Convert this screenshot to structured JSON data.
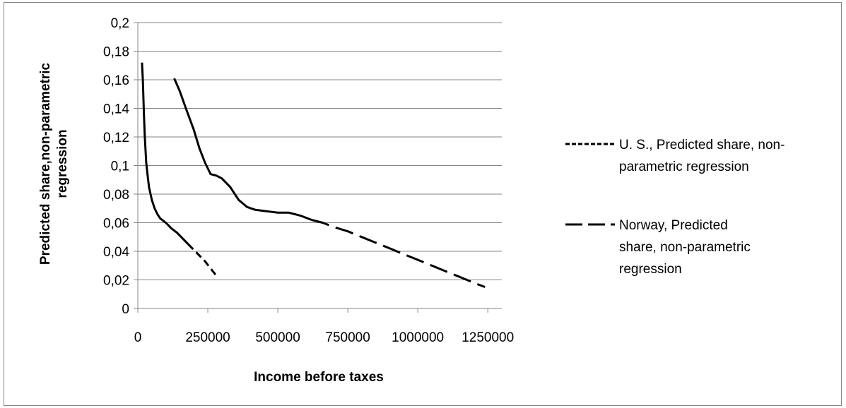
{
  "chart_data": {
    "type": "line",
    "title": "",
    "xlabel": "Income before taxes",
    "ylabel": [
      "Predicted share,non-parametric",
      "regression"
    ],
    "xlim": [
      0,
      1300000
    ],
    "ylim": [
      0,
      0.2
    ],
    "x_ticks": [
      0,
      250000,
      500000,
      750000,
      1000000,
      1250000
    ],
    "x_tick_labels": [
      "0",
      "250000",
      "500000",
      "750000",
      "1000000",
      "1250000"
    ],
    "y_ticks": [
      0,
      0.02,
      0.04,
      0.06,
      0.08,
      0.1,
      0.12,
      0.14,
      0.16,
      0.18,
      0.2
    ],
    "y_tick_labels": [
      "0",
      "0,02",
      "0,04",
      "0,06",
      "0,08",
      "0,1",
      "0,12",
      "0,14",
      "0,16",
      "0,18",
      "0,2"
    ],
    "grid": "horizontal",
    "legend_position": "right",
    "series": [
      {
        "name": "U. S., Predicted share, non-parametric regression",
        "legend_lines": [
          "U. S., Predicted share, non-",
          "parametric regression"
        ],
        "line_style": "short-dash",
        "solid_portion": "draws as solid where points are dense",
        "color": "#000000",
        "x": [
          15000,
          18000,
          22000,
          25000,
          30000,
          35000,
          40000,
          50000,
          60000,
          70000,
          80000,
          100000,
          120000,
          140000,
          160000,
          180000,
          200000,
          220000,
          240000,
          260000,
          280000
        ],
        "y": [
          0.172,
          0.16,
          0.135,
          0.12,
          0.102,
          0.093,
          0.085,
          0.076,
          0.07,
          0.066,
          0.063,
          0.06,
          0.056,
          0.053,
          0.049,
          0.045,
          0.041,
          0.037,
          0.033,
          0.028,
          0.023
        ]
      },
      {
        "name": "Norway, Predicted share, non-parametric regression",
        "legend_lines": [
          "Norway, Predicted",
          "share, non-parametric",
          "regression"
        ],
        "line_style": "long-dash",
        "color": "#000000",
        "x": [
          130000,
          150000,
          170000,
          200000,
          220000,
          240000,
          260000,
          280000,
          300000,
          330000,
          360000,
          390000,
          420000,
          460000,
          500000,
          540000,
          580000,
          620000,
          660000,
          700000,
          750000,
          800000,
          850000,
          900000,
          950000,
          1000000,
          1050000,
          1100000,
          1150000,
          1200000,
          1240000
        ],
        "y": [
          0.161,
          0.152,
          0.141,
          0.125,
          0.112,
          0.102,
          0.094,
          0.093,
          0.091,
          0.085,
          0.076,
          0.071,
          0.069,
          0.068,
          0.067,
          0.067,
          0.065,
          0.062,
          0.06,
          0.057,
          0.054,
          0.05,
          0.046,
          0.042,
          0.038,
          0.034,
          0.03,
          0.026,
          0.022,
          0.018,
          0.015
        ]
      }
    ]
  }
}
